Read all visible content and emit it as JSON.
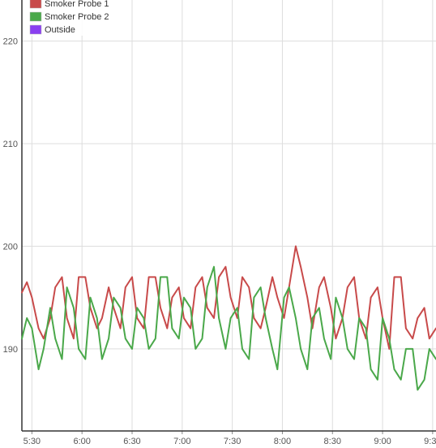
{
  "chart_data": {
    "type": "line",
    "title": "",
    "xlabel": "",
    "ylabel": "",
    "ylim": [
      182,
      224
    ],
    "xlim": [
      "5:24",
      "9:32"
    ],
    "y_ticks": [
      190,
      200,
      210,
      220
    ],
    "x_ticks": [
      "5:30",
      "6:00",
      "6:30",
      "7:00",
      "7:30",
      "8:00",
      "8:30",
      "9:00",
      "9:30"
    ],
    "grid": true,
    "legend_position": "top-left",
    "legend": [
      {
        "name": "Smoker Probe 1",
        "color": "#c84a4a"
      },
      {
        "name": "Smoker Probe 2",
        "color": "#4aa84a"
      },
      {
        "name": "Outside",
        "color": "#8a3ff0"
      }
    ],
    "series": [
      {
        "name": "Smoker Probe 1",
        "color": "#c84a4a",
        "x": [
          "5:24",
          "5:27",
          "5:30",
          "5:34",
          "5:37",
          "5:41",
          "5:44",
          "5:48",
          "5:51",
          "5:55",
          "5:58",
          "6:02",
          "6:05",
          "6:09",
          "6:12",
          "6:16",
          "6:19",
          "6:23",
          "6:26",
          "6:30",
          "6:33",
          "6:37",
          "6:40",
          "6:44",
          "6:47",
          "6:51",
          "6:54",
          "6:58",
          "7:01",
          "7:05",
          "7:08",
          "7:12",
          "7:15",
          "7:19",
          "7:22",
          "7:26",
          "7:29",
          "7:33",
          "7:36",
          "7:40",
          "7:43",
          "7:47",
          "7:50",
          "7:54",
          "7:57",
          "8:01",
          "8:04",
          "8:08",
          "8:11",
          "8:15",
          "8:18",
          "8:22",
          "8:25",
          "8:29",
          "8:32",
          "8:36",
          "8:39",
          "8:43",
          "8:46",
          "8:50",
          "8:53",
          "8:57",
          "9:00",
          "9:04",
          "9:07",
          "9:11",
          "9:14",
          "9:18",
          "9:21",
          "9:25",
          "9:28",
          "9:32"
        ],
        "values": [
          195.5,
          196.5,
          195,
          192,
          191,
          193,
          196,
          197,
          193,
          191,
          197,
          197,
          194,
          192,
          193,
          196,
          194,
          192,
          196,
          197,
          193,
          192,
          197,
          197,
          194,
          192,
          195,
          196,
          193,
          192,
          196,
          197,
          194,
          193,
          197,
          198,
          195,
          193,
          197,
          196,
          193,
          192,
          194,
          197,
          195,
          193,
          196,
          200,
          198,
          195,
          192,
          196,
          197,
          194,
          191,
          193,
          196,
          197,
          193,
          191,
          195,
          196,
          193,
          190,
          197,
          197,
          192,
          191,
          193,
          194,
          191,
          192
        ]
      },
      {
        "name": "Smoker Probe 2",
        "color": "#4aa84a",
        "x": [
          "5:24",
          "5:27",
          "5:30",
          "5:34",
          "5:37",
          "5:41",
          "5:44",
          "5:48",
          "5:51",
          "5:55",
          "5:58",
          "6:02",
          "6:05",
          "6:09",
          "6:12",
          "6:16",
          "6:19",
          "6:23",
          "6:26",
          "6:30",
          "6:33",
          "6:37",
          "6:40",
          "6:44",
          "6:47",
          "6:51",
          "6:54",
          "6:58",
          "7:01",
          "7:05",
          "7:08",
          "7:12",
          "7:15",
          "7:19",
          "7:22",
          "7:26",
          "7:29",
          "7:33",
          "7:36",
          "7:40",
          "7:43",
          "7:47",
          "7:50",
          "7:54",
          "7:57",
          "8:01",
          "8:04",
          "8:08",
          "8:11",
          "8:15",
          "8:18",
          "8:22",
          "8:25",
          "8:29",
          "8:32",
          "8:36",
          "8:39",
          "8:43",
          "8:46",
          "8:50",
          "8:53",
          "8:57",
          "9:00",
          "9:04",
          "9:07",
          "9:11",
          "9:14",
          "9:18",
          "9:21",
          "9:25",
          "9:28",
          "9:32"
        ],
        "values": [
          191,
          193,
          192,
          188,
          190,
          194,
          191,
          189,
          196,
          194,
          190,
          189,
          195,
          193,
          189,
          191,
          195,
          194,
          191,
          190,
          194,
          193,
          190,
          191,
          197,
          197,
          192,
          191,
          195,
          194,
          190,
          191,
          196,
          198,
          193,
          190,
          193,
          194,
          190,
          189,
          195,
          196,
          193,
          190,
          188,
          195,
          196,
          193,
          190,
          188,
          193,
          194,
          191,
          189,
          195,
          193,
          190,
          189,
          193,
          192,
          188,
          187,
          193,
          191,
          188,
          187,
          190,
          190,
          186,
          187,
          190,
          189
        ]
      },
      {
        "name": "Outside",
        "color": "#8a3ff0",
        "x": [],
        "values": []
      }
    ]
  }
}
